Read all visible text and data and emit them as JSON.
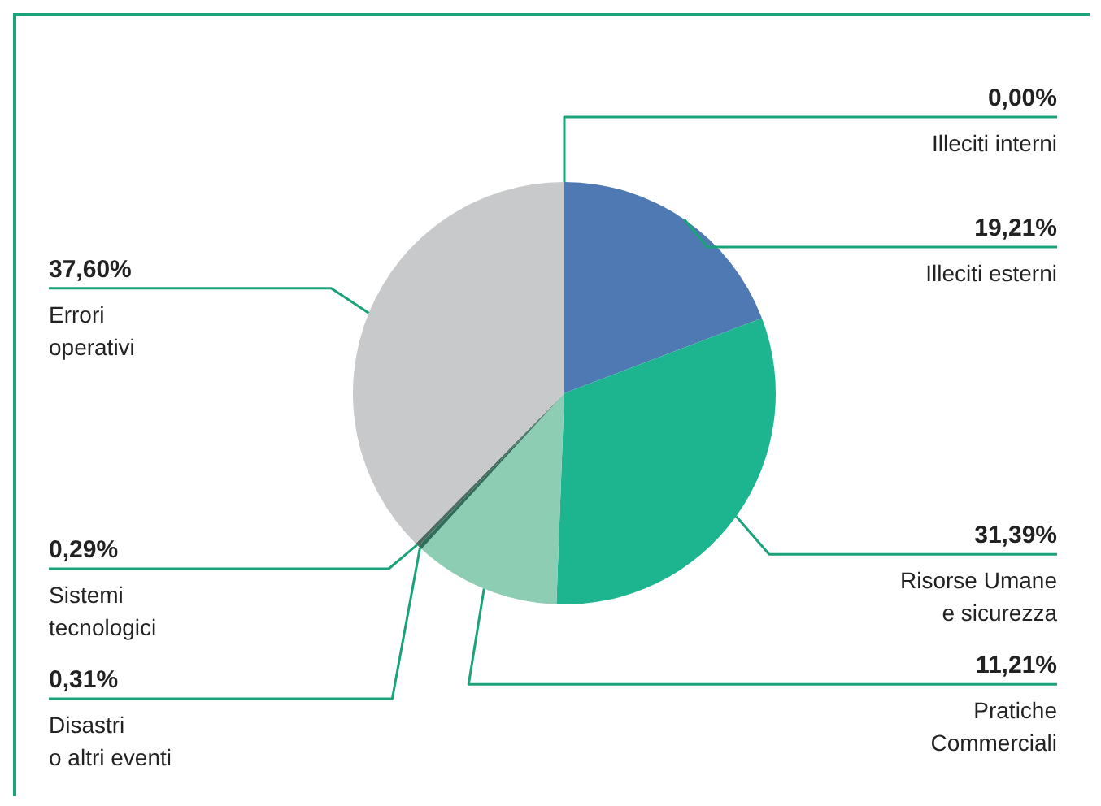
{
  "chart_data": {
    "type": "pie",
    "categories": [
      "Illeciti interni",
      "Illeciti esterni",
      "Risorse Umane\ne sicurezza",
      "Pratiche\nCommerciali",
      "Disastri\no altri eventi",
      "Sistemi\ntecnologici",
      "Errori\noperativi"
    ],
    "values": [
      0.0,
      19.21,
      31.39,
      11.21,
      0.31,
      0.29,
      37.6
    ],
    "value_labels": [
      "0,00%",
      "19,21%",
      "31,39%",
      "11,21%",
      "0,31%",
      "0,29%",
      "37,60%"
    ],
    "colors": [
      "#2d4f7c",
      "#4e79b2",
      "#1cb58f",
      "#8ccdb4",
      "#2f6e5a",
      "#4d6b61",
      "#c8c9cb"
    ]
  }
}
